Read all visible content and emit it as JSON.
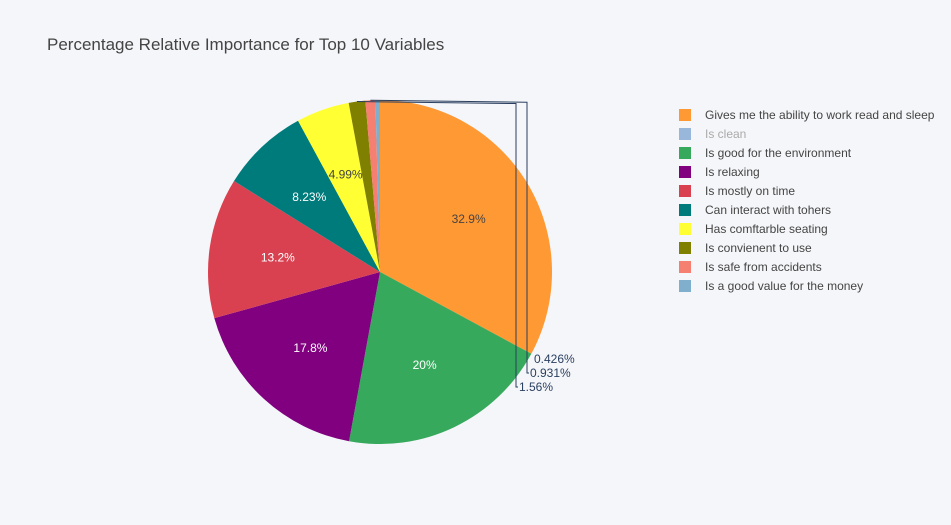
{
  "chart_data": {
    "type": "pie",
    "title": "Percentage Relative Importance for Top 10 Variables",
    "slices": [
      {
        "label": "Gives me the ability to work read and sleep",
        "value": 32.9,
        "display": "32.9%",
        "color": "#ff9933",
        "text_color": "#444444",
        "hidden": false
      },
      {
        "label": "Is clean",
        "value": 0,
        "display": "",
        "color": "#98b7da",
        "text_color": "#444444",
        "hidden": true
      },
      {
        "label": "Is good for the environment",
        "value": 20.0,
        "display": "20%",
        "color": "#36a95c",
        "text_color": "#ffffff",
        "hidden": false
      },
      {
        "label": "Is relaxing",
        "value": 17.8,
        "display": "17.8%",
        "color": "#800080",
        "text_color": "#ffffff",
        "hidden": false
      },
      {
        "label": "Is mostly on time",
        "value": 13.2,
        "display": "13.2%",
        "color": "#d94050",
        "text_color": "#ffffff",
        "hidden": false
      },
      {
        "label": "Can interact with tohers",
        "value": 8.23,
        "display": "8.23%",
        "color": "#007b7b",
        "text_color": "#ffffff",
        "hidden": false
      },
      {
        "label": "Has comftarble seating",
        "value": 4.99,
        "display": "4.99%",
        "color": "#ffff33",
        "text_color": "#444444",
        "hidden": false
      },
      {
        "label": "Is convienent to use",
        "value": 1.56,
        "display": "1.56%",
        "color": "#808000",
        "text_color": "#2a3f5f",
        "hidden": false
      },
      {
        "label": "Is safe from accidents",
        "value": 0.931,
        "display": "0.931%",
        "color": "#f57f70",
        "text_color": "#2a3f5f",
        "hidden": false
      },
      {
        "label": "Is a good value for the money",
        "value": 0.426,
        "display": "0.426%",
        "color": "#7fafcc",
        "text_color": "#2a3f5f",
        "hidden": false
      }
    ],
    "direction": "clockwise",
    "start_angle_deg": 0,
    "legend_position": "right"
  }
}
